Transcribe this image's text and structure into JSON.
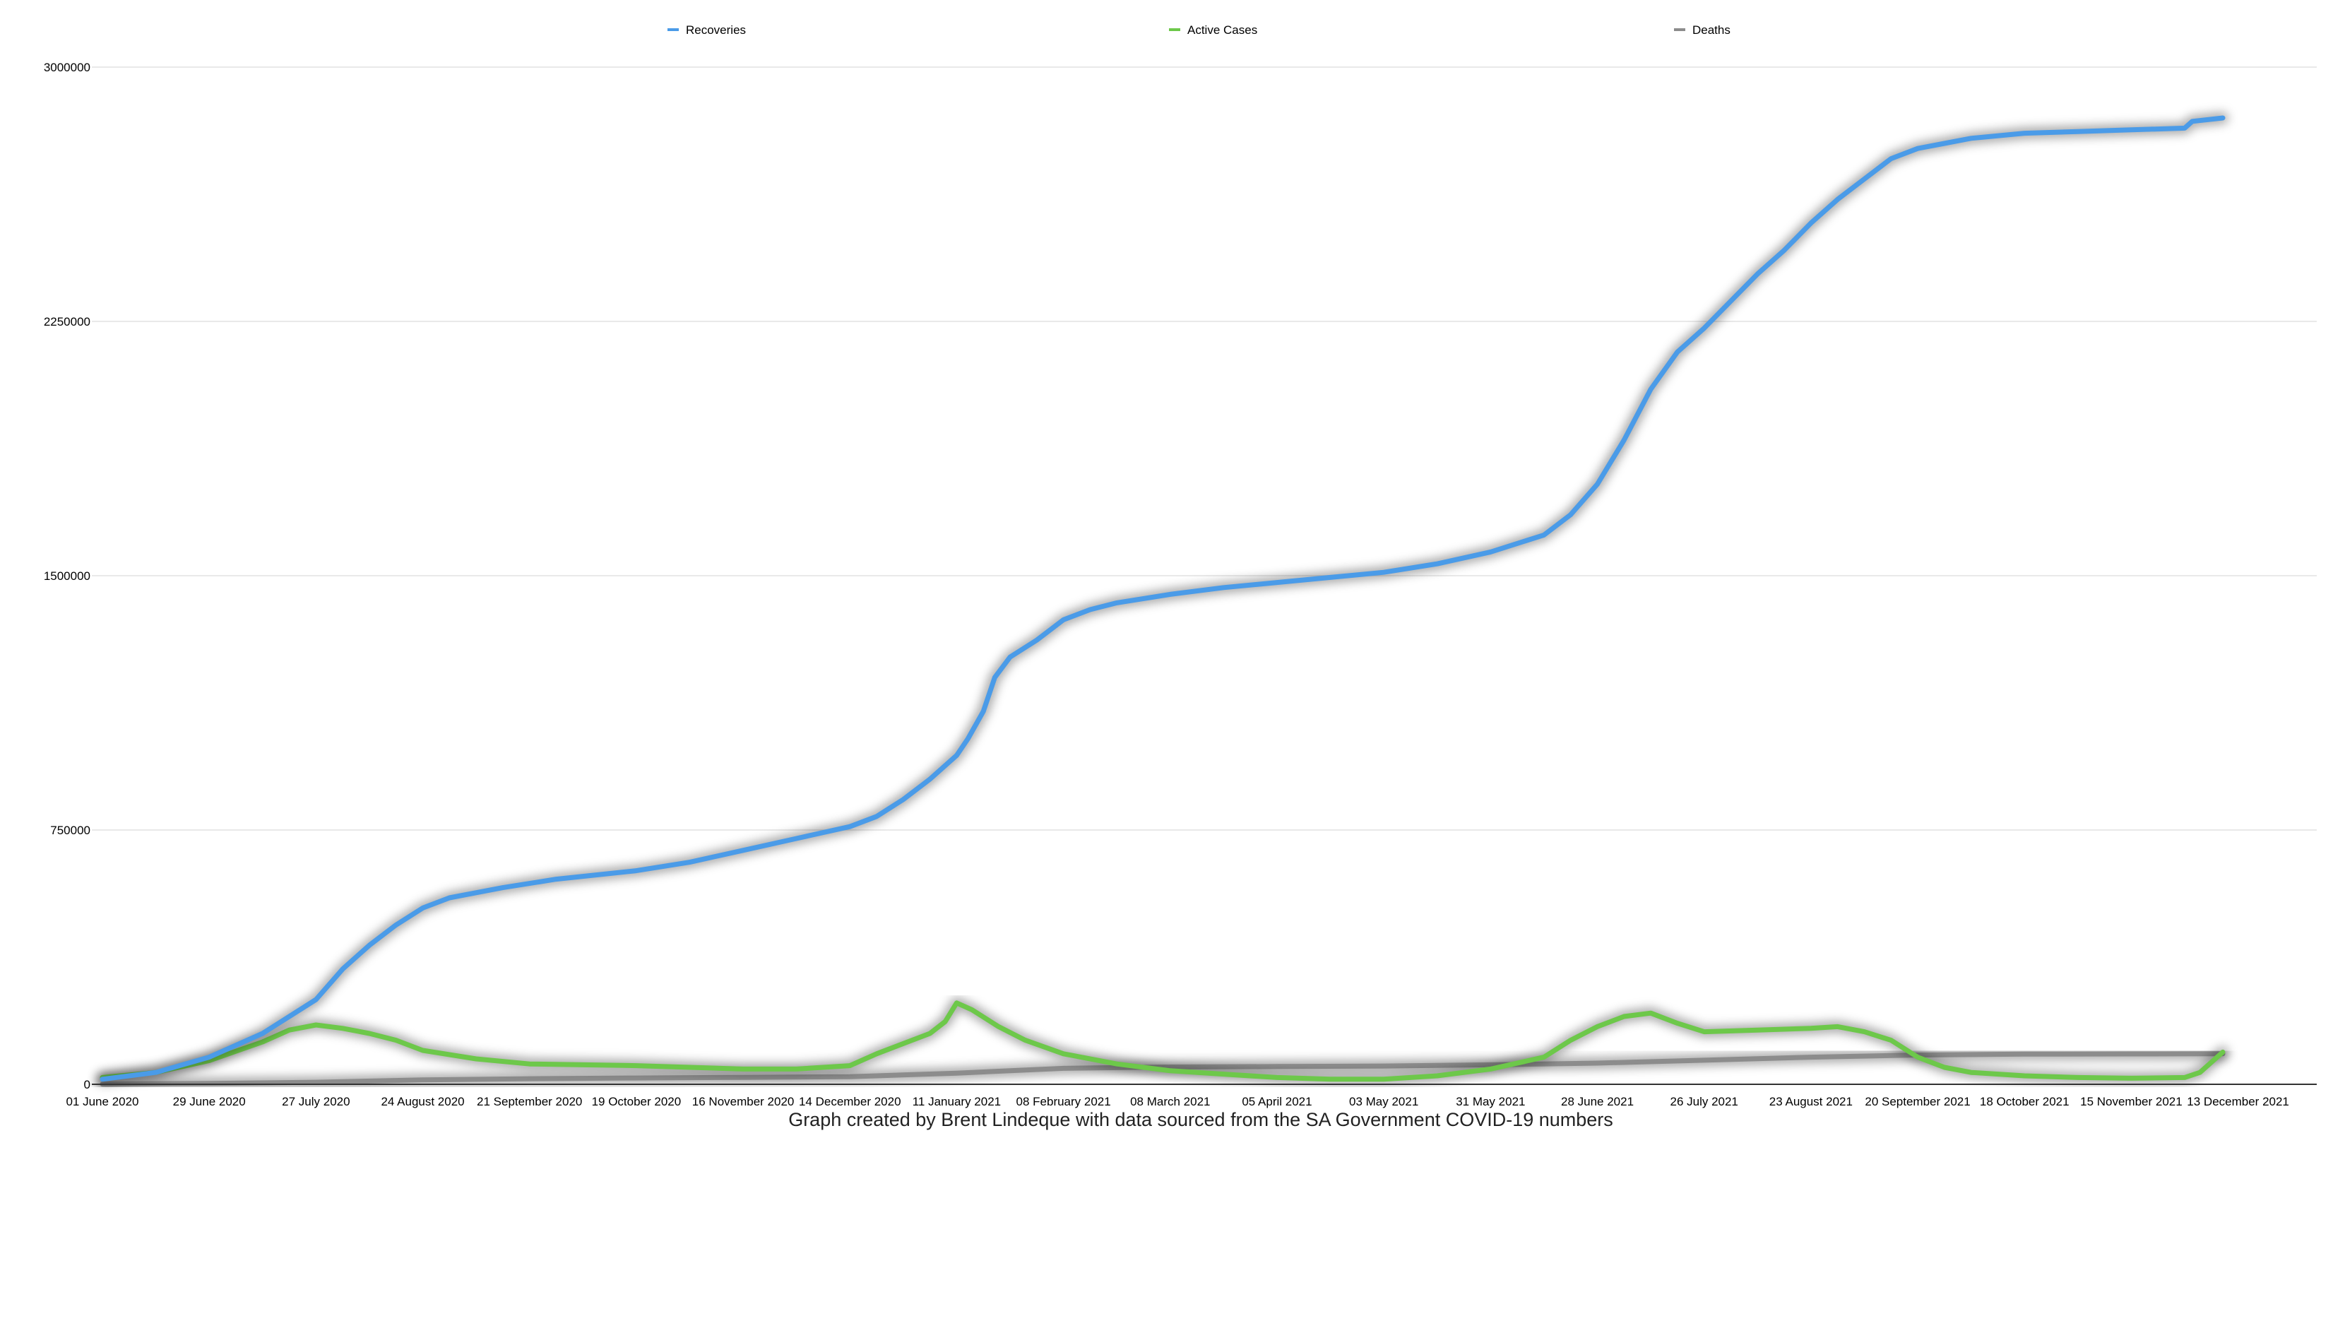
{
  "chart_data": {
    "type": "line",
    "title": "",
    "xlabel": "",
    "ylabel": "",
    "caption": "Graph created by Brent Lindeque with data sourced from the SA Government COVID-19 numbers",
    "legend_position": "top",
    "grid": true,
    "ylim": [
      0,
      3000000
    ],
    "yticks": [
      "0",
      "750000",
      "1500000",
      "2250000",
      "3000000"
    ],
    "x_range": [
      "01 June 2020",
      "09 December 2021"
    ],
    "xticks": [
      "01 June 2020",
      "29 June 2020",
      "27 July 2020",
      "24 August 2020",
      "21 September 2020",
      "19 October 2020",
      "16 November 2020",
      "14 December 2020",
      "11 January 2021",
      "08 February 2021",
      "08 March 2021",
      "05 April 2021",
      "03 May 2021",
      "31 May 2021",
      "28 June 2021",
      "26 July 2021",
      "23 August 2021",
      "20 September 2021",
      "18 October 2021",
      "15 November 2021",
      "13 December 2021"
    ],
    "series": [
      {
        "name": "Recoveries",
        "color": "#4a9be8",
        "x": [
          "01 June 2020",
          "15 June 2020",
          "29 June 2020",
          "13 July 2020",
          "27 July 2020",
          "03 August 2020",
          "10 August 2020",
          "17 August 2020",
          "24 August 2020",
          "31 August 2020",
          "14 September 2020",
          "28 September 2020",
          "19 October 2020",
          "02 November 2020",
          "16 November 2020",
          "30 November 2020",
          "14 December 2020",
          "21 December 2020",
          "28 December 2020",
          "04 January 2021",
          "11 January 2021",
          "14 January 2021",
          "18 January 2021",
          "21 January 2021",
          "25 January 2021",
          "01 February 2021",
          "08 February 2021",
          "15 February 2021",
          "22 February 2021",
          "08 March 2021",
          "22 March 2021",
          "05 April 2021",
          "19 April 2021",
          "03 May 2021",
          "17 May 2021",
          "31 May 2021",
          "14 June 2021",
          "21 June 2021",
          "28 June 2021",
          "05 July 2021",
          "12 July 2021",
          "19 July 2021",
          "26 July 2021",
          "02 August 2021",
          "09 August 2021",
          "16 August 2021",
          "23 August 2021",
          "30 August 2021",
          "06 September 2021",
          "13 September 2021",
          "20 September 2021",
          "27 September 2021",
          "04 October 2021",
          "18 October 2021",
          "01 November 2021",
          "15 November 2021",
          "29 November 2021",
          "01 December 2021",
          "09 December 2021"
        ],
        "values": [
          15000,
          35000,
          80000,
          150000,
          250000,
          340000,
          410000,
          470000,
          520000,
          550000,
          580000,
          605000,
          630000,
          655000,
          690000,
          725000,
          760000,
          790000,
          840000,
          900000,
          970000,
          1020000,
          1100000,
          1200000,
          1260000,
          1310000,
          1370000,
          1400000,
          1420000,
          1445000,
          1465000,
          1480000,
          1495000,
          1510000,
          1535000,
          1570000,
          1620000,
          1680000,
          1770000,
          1900000,
          2050000,
          2160000,
          2230000,
          2310000,
          2390000,
          2460000,
          2540000,
          2610000,
          2670000,
          2730000,
          2760000,
          2775000,
          2790000,
          2805000,
          2810000,
          2815000,
          2820000,
          2840000,
          2850000
        ]
      },
      {
        "name": "Active Cases",
        "color": "#6dc84a",
        "x": [
          "01 June 2020",
          "15 June 2020",
          "29 June 2020",
          "13 July 2020",
          "20 July 2020",
          "27 July 2020",
          "03 August 2020",
          "10 August 2020",
          "17 August 2020",
          "24 August 2020",
          "07 September 2020",
          "21 September 2020",
          "19 October 2020",
          "16 November 2020",
          "30 November 2020",
          "14 December 2020",
          "21 December 2020",
          "28 December 2020",
          "04 January 2021",
          "08 January 2021",
          "11 January 2021",
          "15 January 2021",
          "22 January 2021",
          "29 January 2021",
          "08 February 2021",
          "22 February 2021",
          "08 March 2021",
          "22 March 2021",
          "05 April 2021",
          "19 April 2021",
          "03 May 2021",
          "17 May 2021",
          "31 May 2021",
          "14 June 2021",
          "21 June 2021",
          "28 June 2021",
          "05 July 2021",
          "12 July 2021",
          "19 July 2021",
          "26 July 2021",
          "09 August 2021",
          "23 August 2021",
          "30 August 2021",
          "06 September 2021",
          "13 September 2021",
          "20 September 2021",
          "27 September 2021",
          "04 October 2021",
          "18 October 2021",
          "01 November 2021",
          "15 November 2021",
          "29 November 2021",
          "03 December 2021",
          "09 December 2021"
        ],
        "values": [
          20000,
          35000,
          70000,
          125000,
          160000,
          175000,
          165000,
          150000,
          130000,
          100000,
          75000,
          60000,
          55000,
          45000,
          45000,
          55000,
          90000,
          120000,
          150000,
          185000,
          240000,
          220000,
          170000,
          130000,
          90000,
          60000,
          40000,
          30000,
          20000,
          15000,
          15000,
          25000,
          45000,
          80000,
          130000,
          170000,
          200000,
          210000,
          180000,
          155000,
          160000,
          165000,
          170000,
          155000,
          130000,
          80000,
          50000,
          35000,
          25000,
          20000,
          18000,
          20000,
          35000,
          95000
        ]
      },
      {
        "name": "Deaths",
        "color": "#8c8c8c",
        "x": [
          "01 June 2020",
          "29 June 2020",
          "27 July 2020",
          "24 August 2020",
          "21 September 2020",
          "19 October 2020",
          "16 November 2020",
          "14 December 2020",
          "11 January 2021",
          "08 February 2021",
          "08 March 2021",
          "05 April 2021",
          "03 May 2021",
          "31 May 2021",
          "28 June 2021",
          "26 July 2021",
          "23 August 2021",
          "20 September 2021",
          "18 October 2021",
          "15 November 2021",
          "09 December 2021"
        ],
        "values": [
          700,
          2500,
          6000,
          13000,
          16500,
          18500,
          20500,
          22500,
          33000,
          47000,
          51000,
          52500,
          54000,
          57500,
          62500,
          71000,
          80000,
          86500,
          89000,
          89500,
          90000
        ]
      }
    ]
  }
}
